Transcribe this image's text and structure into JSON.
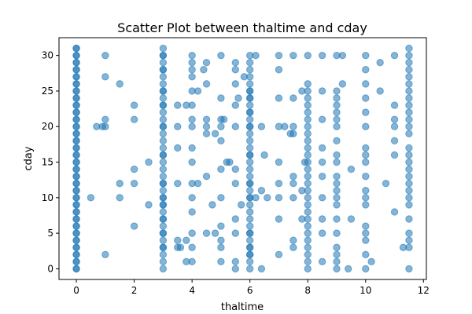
{
  "chart_data": {
    "type": "scatter",
    "title": "Scatter Plot between thaltime and cday",
    "xlabel": "thaltime",
    "ylabel": "cday",
    "xlim": [
      -0.6,
      12.1
    ],
    "ylim": [
      -1.5,
      32.5
    ],
    "xticks": [
      0,
      2,
      4,
      6,
      8,
      10,
      12
    ],
    "yticks": [
      0,
      5,
      10,
      15,
      20,
      25,
      30
    ],
    "grid": false,
    "marker_color": "#1f77b4",
    "marker_alpha": 0.55,
    "columns": [
      {
        "x": 0,
        "y": [
          0,
          1,
          2,
          3,
          4,
          5,
          6,
          7,
          8,
          9,
          10,
          11,
          12,
          13,
          14,
          15,
          16,
          17,
          18,
          19,
          20,
          21,
          22,
          23,
          24,
          25,
          26,
          27,
          28,
          29,
          30,
          31,
          0,
          2,
          4,
          6,
          8,
          10,
          12,
          14,
          16,
          18,
          20,
          22,
          24,
          26,
          28,
          30,
          31,
          1,
          3,
          5,
          7,
          9,
          11,
          13,
          15,
          17,
          19,
          21,
          23,
          25,
          27,
          29
        ]
      },
      {
        "x": 3,
        "y": [
          0,
          1,
          2,
          3,
          4,
          5,
          6,
          7,
          8,
          9,
          10,
          11,
          12,
          13,
          14,
          15,
          16,
          17,
          18,
          19,
          20,
          21,
          22,
          23,
          24,
          25,
          26,
          27,
          28,
          29,
          30,
          31,
          3,
          5,
          7,
          9,
          10,
          12,
          16,
          20,
          23,
          25,
          28,
          30
        ]
      },
      {
        "x": 6,
        "y": [
          0,
          1,
          2,
          3,
          4,
          5,
          6,
          7,
          8,
          9,
          10,
          11,
          12,
          13,
          14,
          15,
          16,
          17,
          18,
          19,
          20,
          21,
          22,
          23,
          24,
          25,
          26,
          27,
          28,
          29,
          30,
          2,
          3,
          5,
          10,
          12,
          16,
          20,
          22,
          24,
          25
        ]
      },
      {
        "x": 8,
        "y": [
          0,
          1,
          2,
          3,
          4,
          5,
          6,
          7,
          8,
          9,
          10,
          11,
          12,
          13,
          14,
          15,
          16,
          17,
          18,
          19,
          20,
          21,
          22,
          23,
          24,
          25,
          26,
          30
        ]
      },
      {
        "x": 9,
        "y": [
          0,
          1,
          2,
          3,
          5,
          7,
          9,
          10,
          11,
          12,
          13,
          15,
          16,
          18,
          20,
          21,
          22,
          23,
          24,
          25,
          30
        ]
      },
      {
        "x": 10,
        "y": [
          0,
          2,
          4,
          5,
          6,
          9,
          10,
          11,
          13,
          15,
          16,
          17,
          20,
          22,
          24,
          26,
          28,
          30
        ]
      },
      {
        "x": 11.5,
        "y": [
          0,
          3,
          4,
          5,
          7,
          9,
          10,
          11,
          12,
          13,
          14,
          15,
          16,
          17,
          19,
          20,
          21,
          22,
          23,
          24,
          25,
          26,
          27,
          28,
          29,
          30,
          31
        ]
      },
      {
        "x": 4,
        "y": [
          1,
          3,
          5,
          8,
          10,
          12,
          15,
          17,
          20,
          21,
          23,
          25,
          27,
          28,
          29,
          30
        ]
      }
    ],
    "points": [
      [
        0.5,
        10
      ],
      [
        0.7,
        20
      ],
      [
        0.9,
        20
      ],
      [
        1,
        2
      ],
      [
        1,
        20
      ],
      [
        1,
        21
      ],
      [
        1,
        27
      ],
      [
        1,
        30
      ],
      [
        1.5,
        10
      ],
      [
        1.5,
        12
      ],
      [
        1.5,
        26
      ],
      [
        2,
        6
      ],
      [
        2,
        12
      ],
      [
        2,
        14
      ],
      [
        2,
        21
      ],
      [
        2,
        23
      ],
      [
        2.5,
        9
      ],
      [
        2.5,
        15
      ],
      [
        3.5,
        3
      ],
      [
        3.5,
        4
      ],
      [
        3.5,
        12
      ],
      [
        3.5,
        17
      ],
      [
        3.5,
        20
      ],
      [
        3.5,
        23
      ],
      [
        3.6,
        3
      ],
      [
        3.8,
        1
      ],
      [
        3.8,
        4
      ],
      [
        3.8,
        23
      ],
      [
        4.2,
        12
      ],
      [
        4.2,
        25
      ],
      [
        4.4,
        28
      ],
      [
        4.5,
        5
      ],
      [
        4.5,
        13
      ],
      [
        4.5,
        19
      ],
      [
        4.5,
        20
      ],
      [
        4.5,
        21
      ],
      [
        4.5,
        26
      ],
      [
        4.5,
        29
      ],
      [
        4.7,
        9
      ],
      [
        4.8,
        5
      ],
      [
        4.8,
        19
      ],
      [
        5,
        1
      ],
      [
        5,
        3
      ],
      [
        5,
        4
      ],
      [
        5,
        6
      ],
      [
        5,
        10
      ],
      [
        5,
        14
      ],
      [
        5,
        18
      ],
      [
        5,
        20
      ],
      [
        5,
        21
      ],
      [
        5,
        24
      ],
      [
        5,
        30
      ],
      [
        5.1,
        21
      ],
      [
        5.2,
        15
      ],
      [
        5.3,
        15
      ],
      [
        5.5,
        0
      ],
      [
        5.5,
        1
      ],
      [
        5.5,
        5
      ],
      [
        5.5,
        7
      ],
      [
        5.5,
        12
      ],
      [
        5.5,
        14
      ],
      [
        5.5,
        20
      ],
      [
        5.5,
        23
      ],
      [
        5.5,
        26
      ],
      [
        5.5,
        28
      ],
      [
        5.5,
        29
      ],
      [
        5.6,
        24
      ],
      [
        5.7,
        9
      ],
      [
        5.8,
        27
      ],
      [
        6.2,
        10
      ],
      [
        6.2,
        30
      ],
      [
        6.4,
        0
      ],
      [
        6.4,
        11
      ],
      [
        6.4,
        20
      ],
      [
        6.5,
        16
      ],
      [
        6.6,
        10
      ],
      [
        7,
        2
      ],
      [
        7,
        7
      ],
      [
        7,
        10
      ],
      [
        7,
        12
      ],
      [
        7,
        15
      ],
      [
        7,
        20
      ],
      [
        7,
        24
      ],
      [
        7,
        28
      ],
      [
        7,
        30
      ],
      [
        7.2,
        20
      ],
      [
        7.4,
        19
      ],
      [
        7.5,
        3
      ],
      [
        7.5,
        4
      ],
      [
        7.5,
        10
      ],
      [
        7.5,
        12
      ],
      [
        7.5,
        13
      ],
      [
        7.5,
        19
      ],
      [
        7.5,
        20
      ],
      [
        7.5,
        24
      ],
      [
        7.5,
        30
      ],
      [
        7.8,
        7
      ],
      [
        7.8,
        11
      ],
      [
        7.8,
        25
      ],
      [
        7.9,
        15
      ],
      [
        8.5,
        1
      ],
      [
        8.5,
        5
      ],
      [
        8.5,
        7
      ],
      [
        8.5,
        10
      ],
      [
        8.5,
        13
      ],
      [
        8.5,
        15
      ],
      [
        8.5,
        17
      ],
      [
        8.5,
        21
      ],
      [
        8.5,
        25
      ],
      [
        8.5,
        30
      ],
      [
        9.2,
        26
      ],
      [
        9.2,
        30
      ],
      [
        9.4,
        0
      ],
      [
        9.5,
        7
      ],
      [
        9.5,
        14
      ],
      [
        10.2,
        1
      ],
      [
        10.5,
        25
      ],
      [
        10.5,
        29
      ],
      [
        10.7,
        12
      ],
      [
        11,
        8
      ],
      [
        11,
        16
      ],
      [
        11,
        18
      ],
      [
        11,
        20
      ],
      [
        11,
        21
      ],
      [
        11,
        23
      ],
      [
        11,
        30
      ],
      [
        11.3,
        3
      ]
    ]
  }
}
